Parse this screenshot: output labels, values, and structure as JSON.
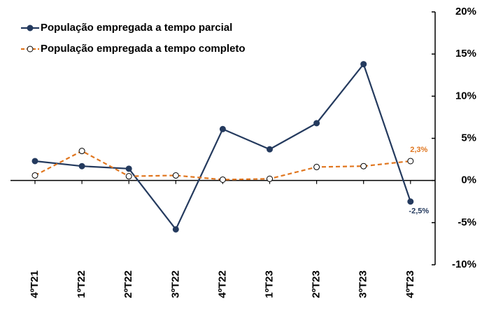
{
  "chart_data": {
    "type": "line",
    "categories": [
      "4ºT21",
      "1ºT22",
      "2ºT22",
      "3ºT22",
      "4ºT22",
      "1ºT23",
      "2ºT23",
      "3ºT23",
      "4ºT23"
    ],
    "series": [
      {
        "name": "População empregada a tempo parcial",
        "color": "#243a5e",
        "marker": "filled",
        "values": [
          2.3,
          1.7,
          1.4,
          -5.8,
          6.1,
          3.7,
          6.8,
          13.8,
          -2.5
        ],
        "value_labels": [
          null,
          null,
          null,
          null,
          null,
          null,
          null,
          null,
          "-2,5%"
        ]
      },
      {
        "name": "População empregada a tempo completo",
        "color": "#e0761f",
        "marker": "open",
        "dashed": true,
        "values": [
          0.6,
          3.5,
          0.5,
          0.6,
          0.1,
          0.2,
          1.6,
          1.7,
          2.3
        ],
        "value_labels": [
          null,
          null,
          null,
          null,
          null,
          null,
          null,
          null,
          "2,3%"
        ]
      }
    ],
    "ylim": [
      -10,
      20
    ],
    "yticks": [
      {
        "value": -10,
        "label": "-10%"
      },
      {
        "value": -5,
        "label": "-5%"
      },
      {
        "value": 0,
        "label": "0%"
      },
      {
        "value": 5,
        "label": "5%"
      },
      {
        "value": 10,
        "label": "10%"
      },
      {
        "value": 15,
        "label": "15%"
      },
      {
        "value": 20,
        "label": "20%"
      }
    ],
    "y_axis_side": "right",
    "legend": "top-left"
  }
}
